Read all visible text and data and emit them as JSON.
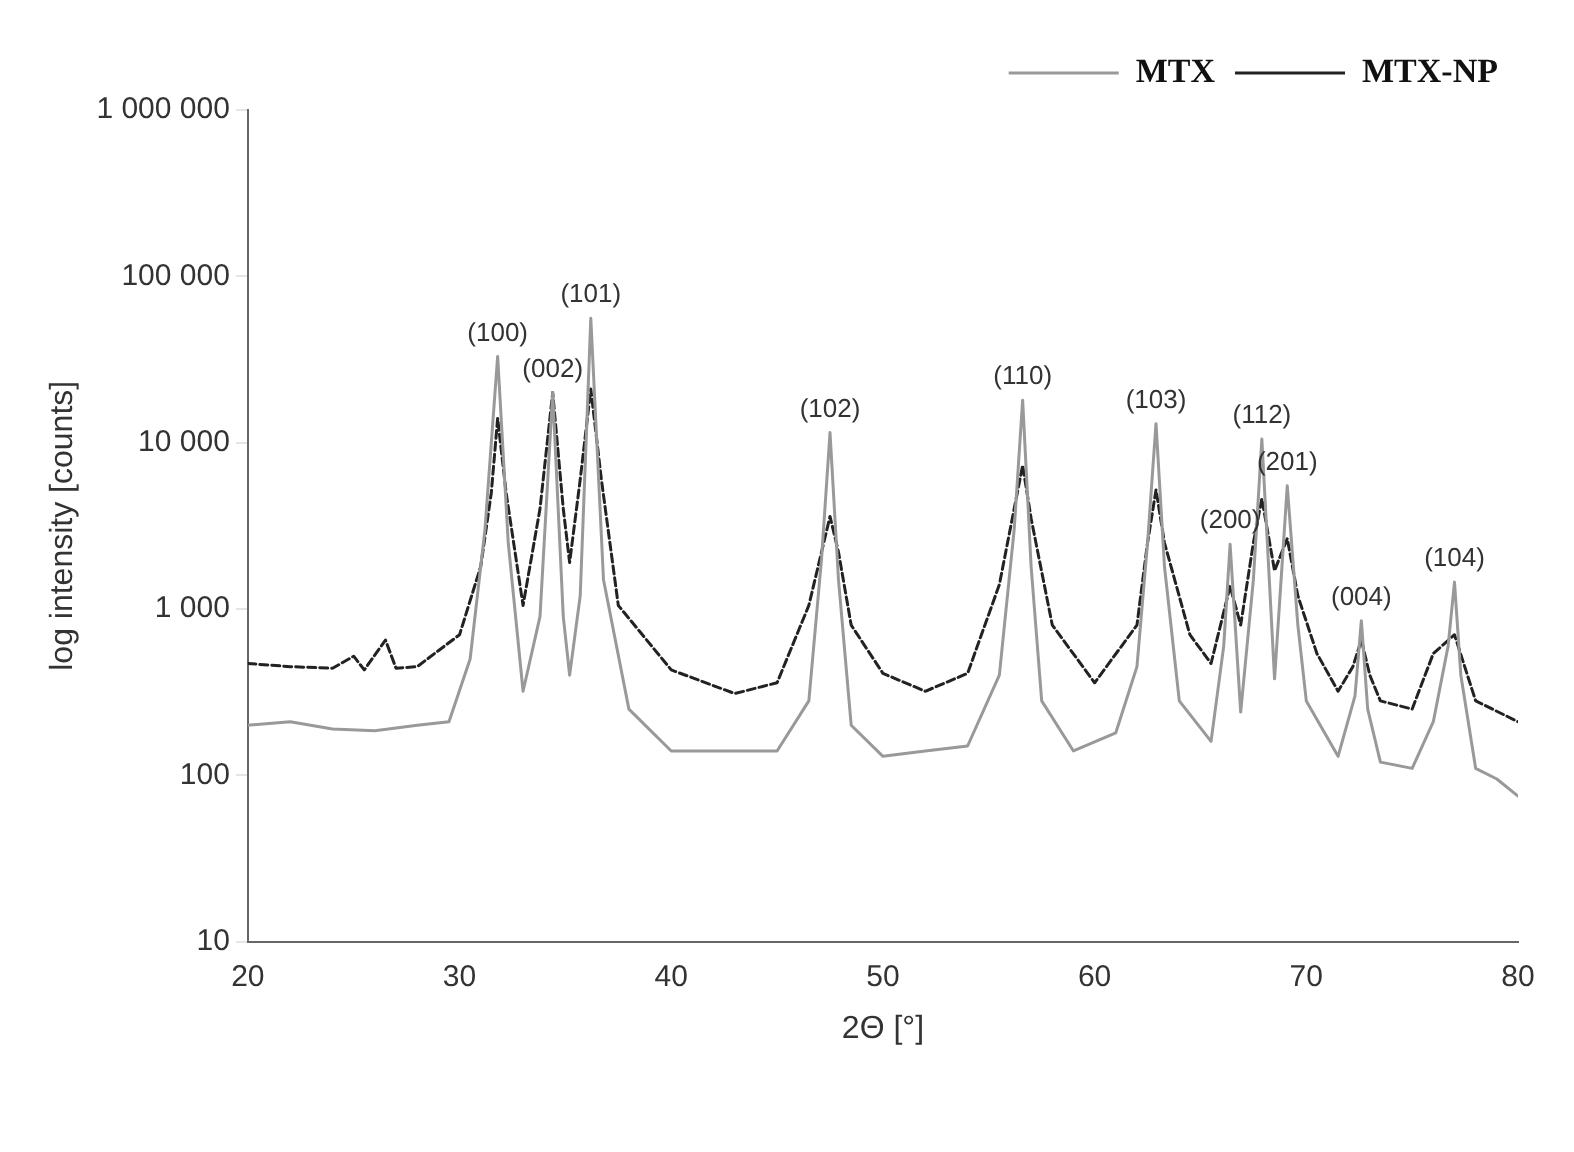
{
  "chart_data": {
    "type": "line",
    "xlabel": "2Θ [°]",
    "ylabel": "log intensity [counts]",
    "xlim": [
      20,
      80
    ],
    "xticks": [
      20,
      30,
      40,
      50,
      60,
      70,
      80
    ],
    "ylim": [
      10,
      1000000
    ],
    "yticks": [
      10,
      100,
      {
        "value": 1000,
        "label": "1 000"
      },
      {
        "value": 10000,
        "label": "10 000"
      },
      {
        "value": 100000,
        "label": "100 000"
      },
      {
        "value": 1000000,
        "label": "1 000 000"
      }
    ],
    "log": "y",
    "grid": false,
    "legend": "top right",
    "marker": "none",
    "series": [
      {
        "name": "MTX",
        "color": "#999999",
        "line_style": "solid",
        "x": [
          20,
          22,
          24,
          26,
          28,
          29.5,
          30.5,
          31.2,
          31.8,
          32.3,
          33,
          33.8,
          34.4,
          34.9,
          35.2,
          35.7,
          36.2,
          36.8,
          38,
          40,
          42,
          45,
          46.5,
          47.1,
          47.5,
          47.9,
          48.5,
          50,
          52,
          54,
          55.5,
          56.2,
          56.6,
          57,
          57.5,
          59,
          61,
          62,
          62.5,
          62.9,
          63.3,
          64,
          65.5,
          66.1,
          66.4,
          66.9,
          67.5,
          67.9,
          68.5,
          69.1,
          69.6,
          70,
          71.5,
          72.3,
          72.6,
          72.9,
          73.5,
          75,
          76,
          76.7,
          77,
          77.3,
          78,
          79,
          80
        ],
        "values": [
          200,
          210,
          190,
          185,
          200,
          210,
          500,
          3000,
          33000,
          2500,
          320,
          900,
          20000,
          900,
          400,
          1200,
          56000,
          1500,
          250,
          140,
          140,
          140,
          280,
          2000,
          11500,
          1500,
          200,
          130,
          140,
          150,
          400,
          3000,
          18000,
          1800,
          280,
          140,
          180,
          450,
          2500,
          13000,
          1800,
          280,
          160,
          600,
          2450,
          240,
          1500,
          10500,
          380,
          5500,
          800,
          280,
          130,
          300,
          850,
          250,
          120,
          110,
          210,
          600,
          1450,
          400,
          110,
          95,
          75
        ]
      },
      {
        "name": "MTX-NP",
        "color": "#222222",
        "line_style": "dashed",
        "x": [
          20,
          22,
          24,
          25,
          25.5,
          26.5,
          27,
          28,
          30,
          31,
          31.5,
          31.8,
          32.2,
          33,
          33.8,
          34.4,
          34.9,
          35.2,
          35.7,
          36.2,
          36.7,
          37.5,
          40,
          43,
          45,
          46.5,
          47.1,
          47.5,
          47.9,
          48.5,
          50,
          52,
          54,
          55.5,
          56.2,
          56.6,
          57,
          58,
          60,
          62,
          62.5,
          62.9,
          63.3,
          64.5,
          65.5,
          66.4,
          66.9,
          67.5,
          67.9,
          68.5,
          69.1,
          69.6,
          70.5,
          71.5,
          72.2,
          72.6,
          73,
          73.5,
          75,
          76,
          77,
          78,
          80
        ],
        "values": [
          470,
          450,
          440,
          520,
          430,
          650,
          440,
          450,
          700,
          1800,
          5000,
          14000,
          5000,
          1050,
          4000,
          20000,
          4000,
          1900,
          6000,
          21000,
          6000,
          1050,
          430,
          310,
          360,
          1050,
          2200,
          3600,
          2200,
          800,
          410,
          320,
          410,
          1400,
          4000,
          7300,
          3500,
          800,
          360,
          800,
          2500,
          5200,
          2500,
          700,
          470,
          1370,
          800,
          2500,
          4600,
          1700,
          2650,
          1200,
          540,
          320,
          450,
          650,
          400,
          280,
          250,
          540,
          700,
          280,
          210
        ]
      }
    ],
    "annotations": [
      {
        "text": "(100)",
        "x": 31.8,
        "y": 33000
      },
      {
        "text": "(002)",
        "x": 34.4,
        "y": 20000
      },
      {
        "text": "(101)",
        "x": 36.2,
        "y": 56000
      },
      {
        "text": "(102)",
        "x": 47.5,
        "y": 11500
      },
      {
        "text": "(110)",
        "x": 56.6,
        "y": 18000
      },
      {
        "text": "(103)",
        "x": 62.9,
        "y": 13000
      },
      {
        "text": "(200)",
        "x": 66.4,
        "y": 2450
      },
      {
        "text": "(112)",
        "x": 67.9,
        "y": 10500
      },
      {
        "text": "(201)",
        "x": 69.1,
        "y": 5500
      },
      {
        "text": "(004)",
        "x": 72.6,
        "y": 850
      },
      {
        "text": "(104)",
        "x": 77,
        "y": 1450
      }
    ]
  }
}
